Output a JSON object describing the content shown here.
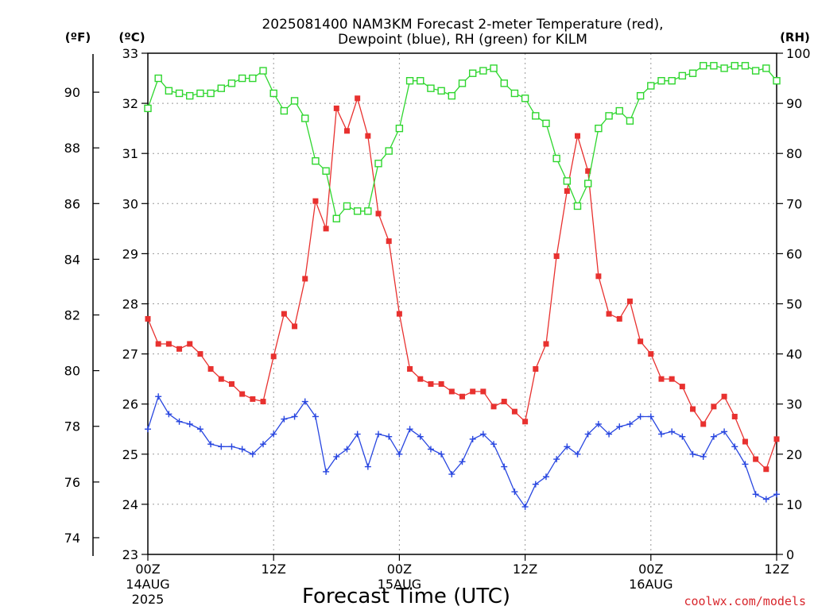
{
  "chart_data": {
    "type": "line",
    "title": "2025081400 NAM3KM Forecast 2-meter Temperature (red),",
    "subtitle": "Dewpoint (blue), RH (green) for KILM",
    "xlabel": "Forecast Time (UTC)",
    "unit_f": "(ºF)",
    "unit_c": "(ºC)",
    "unit_rh": "(RH)",
    "footer": "coolwx.com/models",
    "x_ticks": [
      {
        "h": 0,
        "l1": "00Z",
        "l2": "14AUG",
        "l3": "2025"
      },
      {
        "h": 12,
        "l1": "12Z",
        "l2": "",
        "l3": ""
      },
      {
        "h": 24,
        "l1": "00Z",
        "l2": "15AUG",
        "l3": ""
      },
      {
        "h": 36,
        "l1": "12Z",
        "l2": "",
        "l3": ""
      },
      {
        "h": 48,
        "l1": "00Z",
        "l2": "16AUG",
        "l3": ""
      },
      {
        "h": 60,
        "l1": "12Z",
        "l2": "",
        "l3": ""
      }
    ],
    "xlim": [
      0,
      60
    ],
    "c_ticks": [
      "23",
      "24",
      "25",
      "26",
      "27",
      "28",
      "29",
      "30",
      "31",
      "32",
      "33"
    ],
    "c_lim": [
      23,
      33
    ],
    "f_ticks": [
      "74",
      "76",
      "78",
      "80",
      "82",
      "84",
      "86",
      "88",
      "90"
    ],
    "rh_ticks": [
      "0",
      "10",
      "20",
      "30",
      "40",
      "50",
      "60",
      "70",
      "80",
      "90",
      "100"
    ],
    "rh_lim": [
      0,
      100
    ],
    "grid": true,
    "series": [
      {
        "name": "Temperature",
        "color": "#e8312f",
        "marker": "filled-square",
        "axis": "temp_c",
        "x": [
          0,
          1,
          2,
          3,
          4,
          5,
          6,
          7,
          8,
          9,
          10,
          11,
          12,
          13,
          14,
          15,
          16,
          17,
          18,
          19,
          20,
          21,
          22,
          23,
          24,
          25,
          26,
          27,
          28,
          29,
          30,
          31,
          32,
          33,
          34,
          35,
          36,
          37,
          38,
          39,
          40,
          41,
          42,
          43,
          44,
          45,
          46,
          47,
          48,
          49,
          50,
          51,
          52,
          53,
          54,
          55,
          56,
          57,
          58,
          59,
          60
        ],
        "y": [
          27.7,
          27.2,
          27.2,
          27.1,
          27.2,
          27.0,
          26.7,
          26.5,
          26.4,
          26.2,
          26.1,
          26.05,
          26.95,
          27.8,
          27.55,
          28.5,
          30.05,
          29.5,
          31.9,
          31.45,
          32.1,
          31.35,
          29.8,
          29.25,
          27.8,
          26.7,
          26.5,
          26.4,
          26.4,
          26.25,
          26.15,
          26.25,
          26.25,
          25.95,
          26.05,
          25.85,
          25.65,
          26.7,
          27.2,
          28.95,
          30.25,
          31.35,
          30.65,
          28.55,
          27.8,
          27.7,
          28.05,
          27.25,
          27.0,
          26.5,
          26.5,
          26.35,
          25.9,
          25.6,
          25.95,
          26.15,
          25.75,
          25.25,
          24.9,
          24.7,
          25.3
        ]
      },
      {
        "name": "Dewpoint",
        "color": "#2846e0",
        "marker": "plus",
        "axis": "temp_c",
        "x": [
          0,
          1,
          2,
          3,
          4,
          5,
          6,
          7,
          8,
          9,
          10,
          11,
          12,
          13,
          14,
          15,
          16,
          17,
          18,
          19,
          20,
          21,
          22,
          23,
          24,
          25,
          26,
          27,
          28,
          29,
          30,
          31,
          32,
          33,
          34,
          35,
          36,
          37,
          38,
          39,
          40,
          41,
          42,
          43,
          44,
          45,
          46,
          47,
          48,
          49,
          50,
          51,
          52,
          53,
          54,
          55,
          56,
          57,
          58,
          59,
          60
        ],
        "y": [
          25.5,
          26.15,
          25.8,
          25.65,
          25.6,
          25.5,
          25.2,
          25.15,
          25.15,
          25.1,
          25.0,
          25.2,
          25.4,
          25.7,
          25.75,
          26.05,
          25.75,
          24.65,
          24.95,
          25.1,
          25.4,
          24.75,
          25.4,
          25.35,
          25.0,
          25.5,
          25.35,
          25.1,
          25.0,
          24.6,
          24.85,
          25.3,
          25.4,
          25.2,
          24.75,
          24.25,
          23.95,
          24.4,
          24.55,
          24.9,
          25.15,
          25.0,
          25.4,
          25.6,
          25.4,
          25.55,
          25.6,
          25.75,
          25.75,
          25.4,
          25.45,
          25.35,
          25.0,
          24.95,
          25.35,
          25.45,
          25.15,
          24.8,
          24.2,
          24.1,
          24.2
        ]
      },
      {
        "name": "RH",
        "color": "#2ed62e",
        "marker": "open-square",
        "axis": "rh",
        "x": [
          0,
          1,
          2,
          3,
          4,
          5,
          6,
          7,
          8,
          9,
          10,
          11,
          12,
          13,
          14,
          15,
          16,
          17,
          18,
          19,
          20,
          21,
          22,
          23,
          24,
          25,
          26,
          27,
          28,
          29,
          30,
          31,
          32,
          33,
          34,
          35,
          36,
          37,
          38,
          39,
          40,
          41,
          42,
          43,
          44,
          45,
          46,
          47,
          48,
          49,
          50,
          51,
          52,
          53,
          54,
          55,
          56,
          57,
          58,
          59,
          60
        ],
        "y": [
          89,
          95,
          92.5,
          92,
          91.5,
          92,
          92,
          93,
          94,
          95,
          95,
          96.5,
          92,
          88.5,
          90.5,
          87,
          78.5,
          76.5,
          67,
          69.5,
          68.5,
          68.5,
          78,
          80.5,
          85,
          94.5,
          94.5,
          93,
          92.5,
          91.5,
          94,
          96,
          96.5,
          97,
          94,
          92,
          91,
          87.5,
          86,
          79,
          74.5,
          69.5,
          74,
          85,
          87.5,
          88.5,
          86.5,
          91.5,
          93.5,
          94.5,
          94.5,
          95.5,
          96,
          97.5,
          97.5,
          97,
          97.5,
          97.5,
          96.5,
          97,
          94.5
        ]
      }
    ]
  }
}
